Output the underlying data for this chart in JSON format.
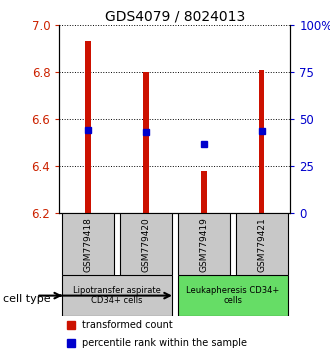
{
  "title": "GDS4079 / 8024013",
  "samples": [
    "GSM779418",
    "GSM779420",
    "GSM779419",
    "GSM779421"
  ],
  "red_bar_tops": [
    6.93,
    6.8,
    6.38,
    6.81
  ],
  "red_bar_bottom": 6.2,
  "blue_dot_values": [
    6.555,
    6.545,
    6.495,
    6.55
  ],
  "left_yticks": [
    6.2,
    6.4,
    6.6,
    6.8,
    7.0
  ],
  "right_yticks": [
    0,
    25,
    50,
    75,
    100
  ],
  "right_yticklabels": [
    "0",
    "25",
    "50",
    "75",
    "100%"
  ],
  "ylim": [
    6.2,
    7.0
  ],
  "right_ylim": [
    0,
    100
  ],
  "cell_groups": [
    {
      "label": "Lipotransfer aspirate\nCD34+ cells",
      "indices": [
        0,
        1
      ],
      "color": "#c8c8c8"
    },
    {
      "label": "Leukapheresis CD34+\ncells",
      "indices": [
        2,
        3
      ],
      "color": "#66dd66"
    }
  ],
  "cell_type_label": "cell type",
  "legend_red_label": "transformed count",
  "legend_blue_label": "percentile rank within the sample",
  "bar_color": "#cc1100",
  "dot_color": "#0000cc",
  "background_color": "#ffffff",
  "sample_box_color": "#c8c8c8"
}
